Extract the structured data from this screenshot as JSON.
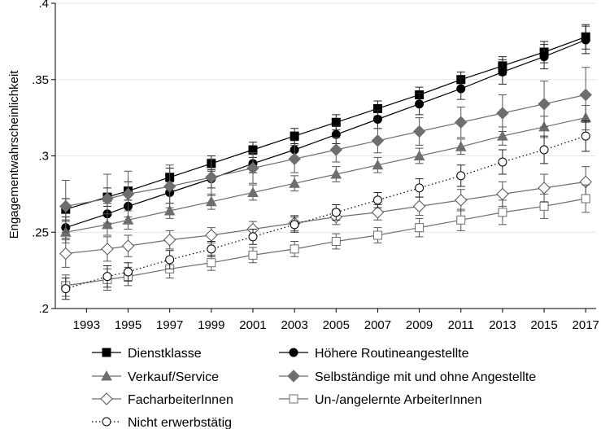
{
  "chart_data": {
    "type": "line",
    "ylabel": "Engagementwahrscheinlichkeit",
    "xlabel": "",
    "x": [
      1992,
      1994,
      1995,
      1997,
      1999,
      2001,
      2003,
      2005,
      2007,
      2009,
      2011,
      2013,
      2015,
      2017
    ],
    "x_ticks": [
      "1993",
      "1995",
      "1997",
      "1999",
      "2001",
      "2003",
      "2005",
      "2007",
      "2009",
      "2011",
      "2013",
      "2015",
      "2017"
    ],
    "y_ticks": [
      ".2",
      ".25",
      ".3",
      ".35",
      ".4"
    ],
    "ylim": [
      0.2,
      0.4
    ],
    "xlim": [
      1991.5,
      2017.5
    ],
    "grid": "horizontal",
    "legend_position": "bottom",
    "series": [
      {
        "name": "Dienstklasse",
        "marker": "square-filled",
        "line": "solid",
        "color": "#000000",
        "values": [
          0.265,
          0.273,
          0.277,
          0.286,
          0.295,
          0.304,
          0.313,
          0.322,
          0.331,
          0.34,
          0.35,
          0.359,
          0.368,
          0.378
        ],
        "ci": [
          [
            0.258,
            0.272
          ],
          [
            0.267,
            0.279
          ],
          [
            0.271,
            0.283
          ],
          [
            0.28,
            0.292
          ],
          [
            0.29,
            0.3
          ],
          [
            0.299,
            0.309
          ],
          [
            0.308,
            0.318
          ],
          [
            0.317,
            0.327
          ],
          [
            0.326,
            0.336
          ],
          [
            0.335,
            0.345
          ],
          [
            0.345,
            0.355
          ],
          [
            0.353,
            0.365
          ],
          [
            0.361,
            0.375
          ],
          [
            0.37,
            0.386
          ]
        ]
      },
      {
        "name": "Höhere Routineangestellte",
        "marker": "circle-filled",
        "line": "solid",
        "color": "#000000",
        "values": [
          0.253,
          0.262,
          0.267,
          0.276,
          0.285,
          0.295,
          0.304,
          0.314,
          0.324,
          0.334,
          0.344,
          0.355,
          0.365,
          0.376
        ],
        "ci": [
          [
            0.246,
            0.26
          ],
          [
            0.255,
            0.269
          ],
          [
            0.26,
            0.274
          ],
          [
            0.269,
            0.283
          ],
          [
            0.279,
            0.291
          ],
          [
            0.289,
            0.301
          ],
          [
            0.298,
            0.31
          ],
          [
            0.308,
            0.32
          ],
          [
            0.318,
            0.33
          ],
          [
            0.327,
            0.341
          ],
          [
            0.337,
            0.351
          ],
          [
            0.347,
            0.363
          ],
          [
            0.357,
            0.373
          ],
          [
            0.367,
            0.385
          ]
        ]
      },
      {
        "name": "Verkauf/Service",
        "marker": "triangle-filled",
        "line": "solid",
        "color": "#6e6e6e",
        "values": [
          0.25,
          0.255,
          0.258,
          0.264,
          0.27,
          0.276,
          0.282,
          0.288,
          0.294,
          0.3,
          0.306,
          0.313,
          0.319,
          0.325
        ],
        "ci": [
          [
            0.243,
            0.257
          ],
          [
            0.248,
            0.262
          ],
          [
            0.252,
            0.264
          ],
          [
            0.259,
            0.269
          ],
          [
            0.265,
            0.275
          ],
          [
            0.271,
            0.281
          ],
          [
            0.277,
            0.287
          ],
          [
            0.283,
            0.293
          ],
          [
            0.289,
            0.299
          ],
          [
            0.295,
            0.305
          ],
          [
            0.301,
            0.311
          ],
          [
            0.307,
            0.319
          ],
          [
            0.312,
            0.326
          ],
          [
            0.317,
            0.333
          ]
        ]
      },
      {
        "name": "Selbständige mit und ohne Angestellte",
        "marker": "diamond-filled",
        "line": "solid",
        "color": "#6e6e6e",
        "values": [
          0.267,
          0.272,
          0.275,
          0.28,
          0.286,
          0.292,
          0.298,
          0.304,
          0.31,
          0.316,
          0.322,
          0.328,
          0.334,
          0.34
        ],
        "ci": [
          [
            0.25,
            0.284
          ],
          [
            0.256,
            0.288
          ],
          [
            0.26,
            0.29
          ],
          [
            0.266,
            0.294
          ],
          [
            0.274,
            0.298
          ],
          [
            0.282,
            0.302
          ],
          [
            0.289,
            0.307
          ],
          [
            0.296,
            0.312
          ],
          [
            0.302,
            0.318
          ],
          [
            0.307,
            0.325
          ],
          [
            0.312,
            0.332
          ],
          [
            0.316,
            0.34
          ],
          [
            0.319,
            0.349
          ],
          [
            0.322,
            0.358
          ]
        ]
      },
      {
        "name": "FacharbeiterInnen",
        "marker": "diamond-open",
        "line": "solid",
        "color": "#6e6e6e",
        "values": [
          0.236,
          0.239,
          0.241,
          0.245,
          0.248,
          0.252,
          0.256,
          0.26,
          0.263,
          0.267,
          0.271,
          0.275,
          0.279,
          0.283
        ],
        "ci": [
          [
            0.227,
            0.245
          ],
          [
            0.231,
            0.247
          ],
          [
            0.234,
            0.248
          ],
          [
            0.239,
            0.251
          ],
          [
            0.243,
            0.253
          ],
          [
            0.247,
            0.257
          ],
          [
            0.251,
            0.261
          ],
          [
            0.255,
            0.265
          ],
          [
            0.258,
            0.268
          ],
          [
            0.261,
            0.273
          ],
          [
            0.264,
            0.278
          ],
          [
            0.267,
            0.283
          ],
          [
            0.27,
            0.288
          ],
          [
            0.273,
            0.293
          ]
        ]
      },
      {
        "name": "Un-/angelernte ArbeiterInnen",
        "marker": "square-open",
        "line": "solid",
        "color": "#6e6e6e",
        "values": [
          0.215,
          0.219,
          0.221,
          0.226,
          0.23,
          0.235,
          0.239,
          0.244,
          0.248,
          0.253,
          0.258,
          0.263,
          0.267,
          0.272
        ],
        "ci": [
          [
            0.208,
            0.222
          ],
          [
            0.212,
            0.226
          ],
          [
            0.215,
            0.227
          ],
          [
            0.22,
            0.232
          ],
          [
            0.225,
            0.235
          ],
          [
            0.23,
            0.24
          ],
          [
            0.234,
            0.244
          ],
          [
            0.239,
            0.249
          ],
          [
            0.243,
            0.253
          ],
          [
            0.247,
            0.259
          ],
          [
            0.251,
            0.265
          ],
          [
            0.255,
            0.271
          ],
          [
            0.259,
            0.275
          ],
          [
            0.263,
            0.281
          ]
        ]
      },
      {
        "name": "Nicht erwerbstätig",
        "marker": "circle-open",
        "line": "dotted",
        "color": "#000000",
        "values": [
          0.213,
          0.221,
          0.224,
          0.232,
          0.239,
          0.247,
          0.255,
          0.263,
          0.271,
          0.279,
          0.287,
          0.296,
          0.304,
          0.313
        ],
        "ci": [
          [
            0.206,
            0.22
          ],
          [
            0.214,
            0.228
          ],
          [
            0.218,
            0.23
          ],
          [
            0.226,
            0.238
          ],
          [
            0.234,
            0.244
          ],
          [
            0.242,
            0.252
          ],
          [
            0.25,
            0.26
          ],
          [
            0.258,
            0.268
          ],
          [
            0.266,
            0.276
          ],
          [
            0.273,
            0.285
          ],
          [
            0.28,
            0.294
          ],
          [
            0.288,
            0.304
          ],
          [
            0.295,
            0.313
          ],
          [
            0.303,
            0.323
          ]
        ]
      }
    ]
  },
  "legend": {
    "items": [
      {
        "name": "Dienstklasse",
        "marker": "square-filled",
        "line": "solid",
        "color": "#000000"
      },
      {
        "name": "Höhere Routineangestellte",
        "marker": "circle-filled",
        "line": "solid",
        "color": "#000000"
      },
      {
        "name": "Verkauf/Service",
        "marker": "triangle-filled",
        "line": "solid",
        "color": "#6e6e6e"
      },
      {
        "name": "Selbständige mit und ohne Angestellte",
        "marker": "diamond-filled",
        "line": "solid",
        "color": "#6e6e6e"
      },
      {
        "name": "FacharbeiterInnen",
        "marker": "diamond-open",
        "line": "solid",
        "color": "#6e6e6e"
      },
      {
        "name": "Un-/angelernte ArbeiterInnen",
        "marker": "square-open",
        "line": "solid",
        "color": "#6e6e6e"
      },
      {
        "name": "Nicht erwerbstätig",
        "marker": "circle-open",
        "line": "dotted",
        "color": "#000000"
      }
    ]
  }
}
